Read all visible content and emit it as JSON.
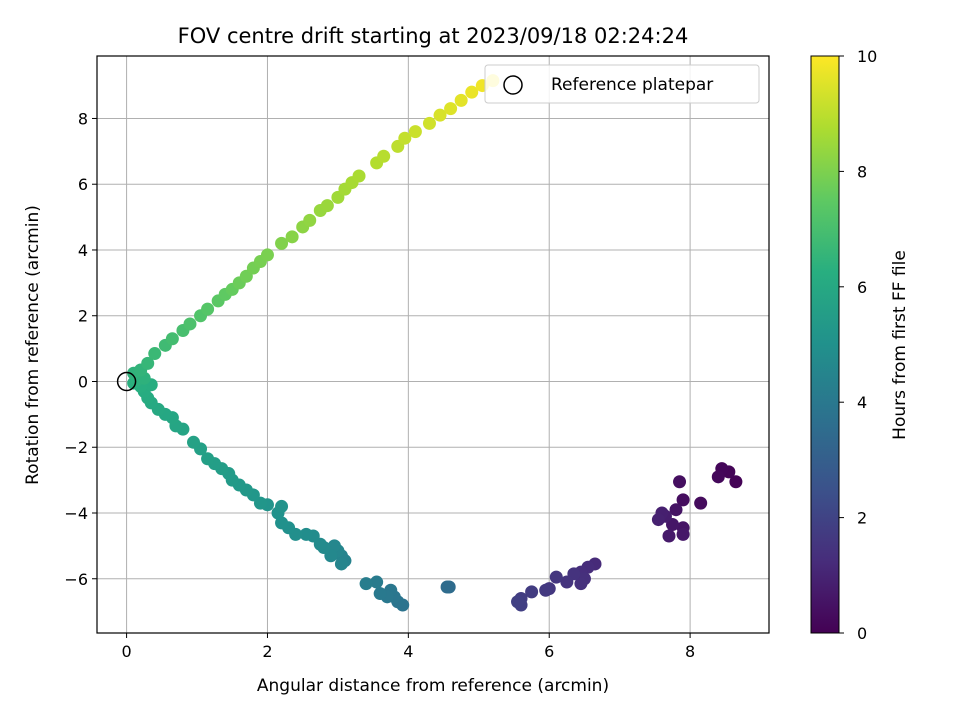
{
  "chart_data": {
    "type": "scatter",
    "title": "FOV centre drift starting at 2023/09/18 02:24:24",
    "xlabel": "Angular distance from reference (arcmin)",
    "ylabel": "Rotation from reference (arcmin)",
    "xlim": [
      -0.42,
      9.12
    ],
    "ylim": [
      -7.65,
      9.9
    ],
    "xticks": [
      0,
      2,
      4,
      6,
      8
    ],
    "yticks": [
      -6,
      -4,
      -2,
      0,
      2,
      4,
      6,
      8
    ],
    "grid": true,
    "legend": {
      "placement": "top-right",
      "entries": [
        "Reference platepar"
      ]
    },
    "reference_point": {
      "x": 0,
      "y": 0,
      "label": "Reference platepar"
    },
    "colorbar": {
      "label": "Hours from first FF file",
      "range": [
        0,
        10
      ],
      "ticks": [
        0,
        2,
        4,
        6,
        8,
        10
      ],
      "colormap": "viridis"
    },
    "points": [
      {
        "x": 8.65,
        "y": -3.05,
        "hours": 0.05
      },
      {
        "x": 8.55,
        "y": -2.75,
        "hours": 0.1
      },
      {
        "x": 8.45,
        "y": -2.65,
        "hours": 0.15
      },
      {
        "x": 8.4,
        "y": -2.9,
        "hours": 0.2
      },
      {
        "x": 8.15,
        "y": -3.7,
        "hours": 0.3
      },
      {
        "x": 7.9,
        "y": -3.6,
        "hours": 0.35
      },
      {
        "x": 7.85,
        "y": -3.05,
        "hours": 0.4
      },
      {
        "x": 7.8,
        "y": -3.9,
        "hours": 0.5
      },
      {
        "x": 7.9,
        "y": -4.45,
        "hours": 0.55
      },
      {
        "x": 7.75,
        "y": -4.35,
        "hours": 0.6
      },
      {
        "x": 7.9,
        "y": -4.65,
        "hours": 0.65
      },
      {
        "x": 7.7,
        "y": -4.7,
        "hours": 0.7
      },
      {
        "x": 7.65,
        "y": -4.1,
        "hours": 0.8
      },
      {
        "x": 7.6,
        "y": -4.0,
        "hours": 0.85
      },
      {
        "x": 7.55,
        "y": -4.2,
        "hours": 0.9
      },
      {
        "x": 6.65,
        "y": -5.55,
        "hours": 1.2
      },
      {
        "x": 6.55,
        "y": -5.65,
        "hours": 1.25
      },
      {
        "x": 6.45,
        "y": -5.8,
        "hours": 1.3
      },
      {
        "x": 6.5,
        "y": -6.0,
        "hours": 1.35
      },
      {
        "x": 6.45,
        "y": -6.15,
        "hours": 1.4
      },
      {
        "x": 6.35,
        "y": -5.85,
        "hours": 1.45
      },
      {
        "x": 6.25,
        "y": -6.1,
        "hours": 1.5
      },
      {
        "x": 6.1,
        "y": -5.95,
        "hours": 1.55
      },
      {
        "x": 6.0,
        "y": -6.3,
        "hours": 1.6
      },
      {
        "x": 5.95,
        "y": -6.35,
        "hours": 1.65
      },
      {
        "x": 5.75,
        "y": -6.4,
        "hours": 1.75
      },
      {
        "x": 5.6,
        "y": -6.6,
        "hours": 1.8
      },
      {
        "x": 5.6,
        "y": -6.8,
        "hours": 1.85
      },
      {
        "x": 5.55,
        "y": -6.7,
        "hours": 1.9
      },
      {
        "x": 4.58,
        "y": -6.25,
        "hours": 3.5
      },
      {
        "x": 4.55,
        "y": -6.25,
        "hours": 3.52
      },
      {
        "x": 3.92,
        "y": -6.8,
        "hours": 3.8
      },
      {
        "x": 3.85,
        "y": -6.7,
        "hours": 3.85
      },
      {
        "x": 3.8,
        "y": -6.55,
        "hours": 3.9
      },
      {
        "x": 3.75,
        "y": -6.35,
        "hours": 3.95
      },
      {
        "x": 3.7,
        "y": -6.55,
        "hours": 4.0
      },
      {
        "x": 3.6,
        "y": -6.45,
        "hours": 4.05
      },
      {
        "x": 3.55,
        "y": -6.1,
        "hours": 4.1
      },
      {
        "x": 3.4,
        "y": -6.15,
        "hours": 4.2
      },
      {
        "x": 3.1,
        "y": -5.45,
        "hours": 4.4
      },
      {
        "x": 3.05,
        "y": -5.3,
        "hours": 4.45
      },
      {
        "x": 3.05,
        "y": -5.55,
        "hours": 4.5
      },
      {
        "x": 3.0,
        "y": -5.15,
        "hours": 4.55
      },
      {
        "x": 2.95,
        "y": -5.0,
        "hours": 4.6
      },
      {
        "x": 2.9,
        "y": -5.3,
        "hours": 4.65
      },
      {
        "x": 2.8,
        "y": -5.05,
        "hours": 4.7
      },
      {
        "x": 2.75,
        "y": -4.95,
        "hours": 4.75
      },
      {
        "x": 2.65,
        "y": -4.7,
        "hours": 4.8
      },
      {
        "x": 2.55,
        "y": -4.65,
        "hours": 4.85
      },
      {
        "x": 2.4,
        "y": -4.65,
        "hours": 4.9
      },
      {
        "x": 2.3,
        "y": -4.45,
        "hours": 4.95
      },
      {
        "x": 2.2,
        "y": -4.3,
        "hours": 5.0
      },
      {
        "x": 2.15,
        "y": -4.0,
        "hours": 5.05
      },
      {
        "x": 2.2,
        "y": -3.8,
        "hours": 5.1
      },
      {
        "x": 2.0,
        "y": -3.75,
        "hours": 5.15
      },
      {
        "x": 1.9,
        "y": -3.7,
        "hours": 5.2
      },
      {
        "x": 1.8,
        "y": -3.45,
        "hours": 5.25
      },
      {
        "x": 1.7,
        "y": -3.3,
        "hours": 5.3
      },
      {
        "x": 1.6,
        "y": -3.15,
        "hours": 5.35
      },
      {
        "x": 1.5,
        "y": -3.0,
        "hours": 5.4
      },
      {
        "x": 1.45,
        "y": -2.8,
        "hours": 5.45
      },
      {
        "x": 1.35,
        "y": -2.65,
        "hours": 5.5
      },
      {
        "x": 1.25,
        "y": -2.5,
        "hours": 5.55
      },
      {
        "x": 1.15,
        "y": -2.35,
        "hours": 5.6
      },
      {
        "x": 1.05,
        "y": -2.05,
        "hours": 5.65
      },
      {
        "x": 0.95,
        "y": -1.85,
        "hours": 5.7
      },
      {
        "x": 0.8,
        "y": -1.45,
        "hours": 5.8
      },
      {
        "x": 0.7,
        "y": -1.35,
        "hours": 5.85
      },
      {
        "x": 0.65,
        "y": -1.1,
        "hours": 5.9
      },
      {
        "x": 0.55,
        "y": -1.0,
        "hours": 5.95
      },
      {
        "x": 0.45,
        "y": -0.85,
        "hours": 6.0
      },
      {
        "x": 0.35,
        "y": -0.65,
        "hours": 6.05
      },
      {
        "x": 0.3,
        "y": -0.5,
        "hours": 6.1
      },
      {
        "x": 0.25,
        "y": -0.3,
        "hours": 6.15
      },
      {
        "x": 0.35,
        "y": -0.1,
        "hours": 6.2
      },
      {
        "x": 0.2,
        "y": -0.15,
        "hours": 6.25
      },
      {
        "x": 0.1,
        "y": -0.05,
        "hours": 6.3
      },
      {
        "x": 0.15,
        "y": 0.05,
        "hours": 6.35
      },
      {
        "x": 0.25,
        "y": 0.1,
        "hours": 6.4
      },
      {
        "x": 0.1,
        "y": 0.25,
        "hours": 6.45
      },
      {
        "x": 0.2,
        "y": 0.35,
        "hours": 6.5
      },
      {
        "x": 0.3,
        "y": 0.55,
        "hours": 6.6
      },
      {
        "x": 0.4,
        "y": 0.85,
        "hours": 6.7
      },
      {
        "x": 0.55,
        "y": 1.1,
        "hours": 6.8
      },
      {
        "x": 0.65,
        "y": 1.3,
        "hours": 6.9
      },
      {
        "x": 0.8,
        "y": 1.55,
        "hours": 7.0
      },
      {
        "x": 0.9,
        "y": 1.75,
        "hours": 7.1
      },
      {
        "x": 1.05,
        "y": 2.0,
        "hours": 7.2
      },
      {
        "x": 1.15,
        "y": 2.2,
        "hours": 7.3
      },
      {
        "x": 1.3,
        "y": 2.45,
        "hours": 7.4
      },
      {
        "x": 1.4,
        "y": 2.65,
        "hours": 7.5
      },
      {
        "x": 1.5,
        "y": 2.8,
        "hours": 7.6
      },
      {
        "x": 1.6,
        "y": 3.0,
        "hours": 7.7
      },
      {
        "x": 1.7,
        "y": 3.2,
        "hours": 7.8
      },
      {
        "x": 1.8,
        "y": 3.45,
        "hours": 7.85
      },
      {
        "x": 1.9,
        "y": 3.65,
        "hours": 7.9
      },
      {
        "x": 2.0,
        "y": 3.85,
        "hours": 7.95
      },
      {
        "x": 2.2,
        "y": 4.2,
        "hours": 8.05
      },
      {
        "x": 2.35,
        "y": 4.4,
        "hours": 8.15
      },
      {
        "x": 2.5,
        "y": 4.7,
        "hours": 8.25
      },
      {
        "x": 2.6,
        "y": 4.9,
        "hours": 8.3
      },
      {
        "x": 2.75,
        "y": 5.2,
        "hours": 8.4
      },
      {
        "x": 2.85,
        "y": 5.35,
        "hours": 8.45
      },
      {
        "x": 3.0,
        "y": 5.6,
        "hours": 8.55
      },
      {
        "x": 3.1,
        "y": 5.85,
        "hours": 8.6
      },
      {
        "x": 3.2,
        "y": 6.05,
        "hours": 8.65
      },
      {
        "x": 3.3,
        "y": 6.25,
        "hours": 8.7
      },
      {
        "x": 3.55,
        "y": 6.65,
        "hours": 8.85
      },
      {
        "x": 3.65,
        "y": 6.85,
        "hours": 8.9
      },
      {
        "x": 3.85,
        "y": 7.15,
        "hours": 9.0
      },
      {
        "x": 3.95,
        "y": 7.4,
        "hours": 9.1
      },
      {
        "x": 4.1,
        "y": 7.6,
        "hours": 9.2
      },
      {
        "x": 4.3,
        "y": 7.85,
        "hours": 9.3
      },
      {
        "x": 4.45,
        "y": 8.1,
        "hours": 9.4
      },
      {
        "x": 4.6,
        "y": 8.3,
        "hours": 9.5
      },
      {
        "x": 4.75,
        "y": 8.55,
        "hours": 9.6
      },
      {
        "x": 4.9,
        "y": 8.8,
        "hours": 9.7
      },
      {
        "x": 5.05,
        "y": 9.0,
        "hours": 9.8
      },
      {
        "x": 5.2,
        "y": 9.15,
        "hours": 9.9
      }
    ]
  }
}
